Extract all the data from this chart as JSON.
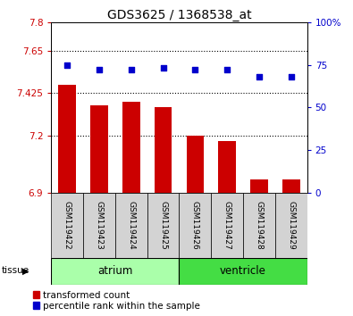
{
  "title": "GDS3625 / 1368538_at",
  "samples": [
    "GSM119422",
    "GSM119423",
    "GSM119424",
    "GSM119425",
    "GSM119426",
    "GSM119427",
    "GSM119428",
    "GSM119429"
  ],
  "transformed_counts": [
    7.47,
    7.36,
    7.38,
    7.35,
    7.2,
    7.175,
    6.97,
    6.97
  ],
  "percentile_ranks": [
    75,
    72,
    72,
    73,
    72,
    72,
    68,
    68
  ],
  "ylim_left": [
    6.9,
    7.8
  ],
  "ylim_right": [
    0,
    100
  ],
  "yticks_left": [
    6.9,
    7.2,
    7.425,
    7.65,
    7.8
  ],
  "ytick_labels_left": [
    "6.9",
    "7.2",
    "7.425",
    "7.65",
    "7.8"
  ],
  "yticks_right": [
    0,
    25,
    50,
    75,
    100
  ],
  "ytick_labels_right": [
    "0",
    "25",
    "50",
    "75",
    "100%"
  ],
  "groups": [
    {
      "label": "atrium",
      "start": 0,
      "end": 3,
      "color": "#AAFFAA"
    },
    {
      "label": "ventricle",
      "start": 4,
      "end": 7,
      "color": "#44DD44"
    }
  ],
  "bar_color": "#CC0000",
  "dot_color": "#0000CC",
  "bar_width": 0.55,
  "gridlines_at": [
    7.2,
    7.425,
    7.65
  ],
  "tissue_label": "tissue"
}
